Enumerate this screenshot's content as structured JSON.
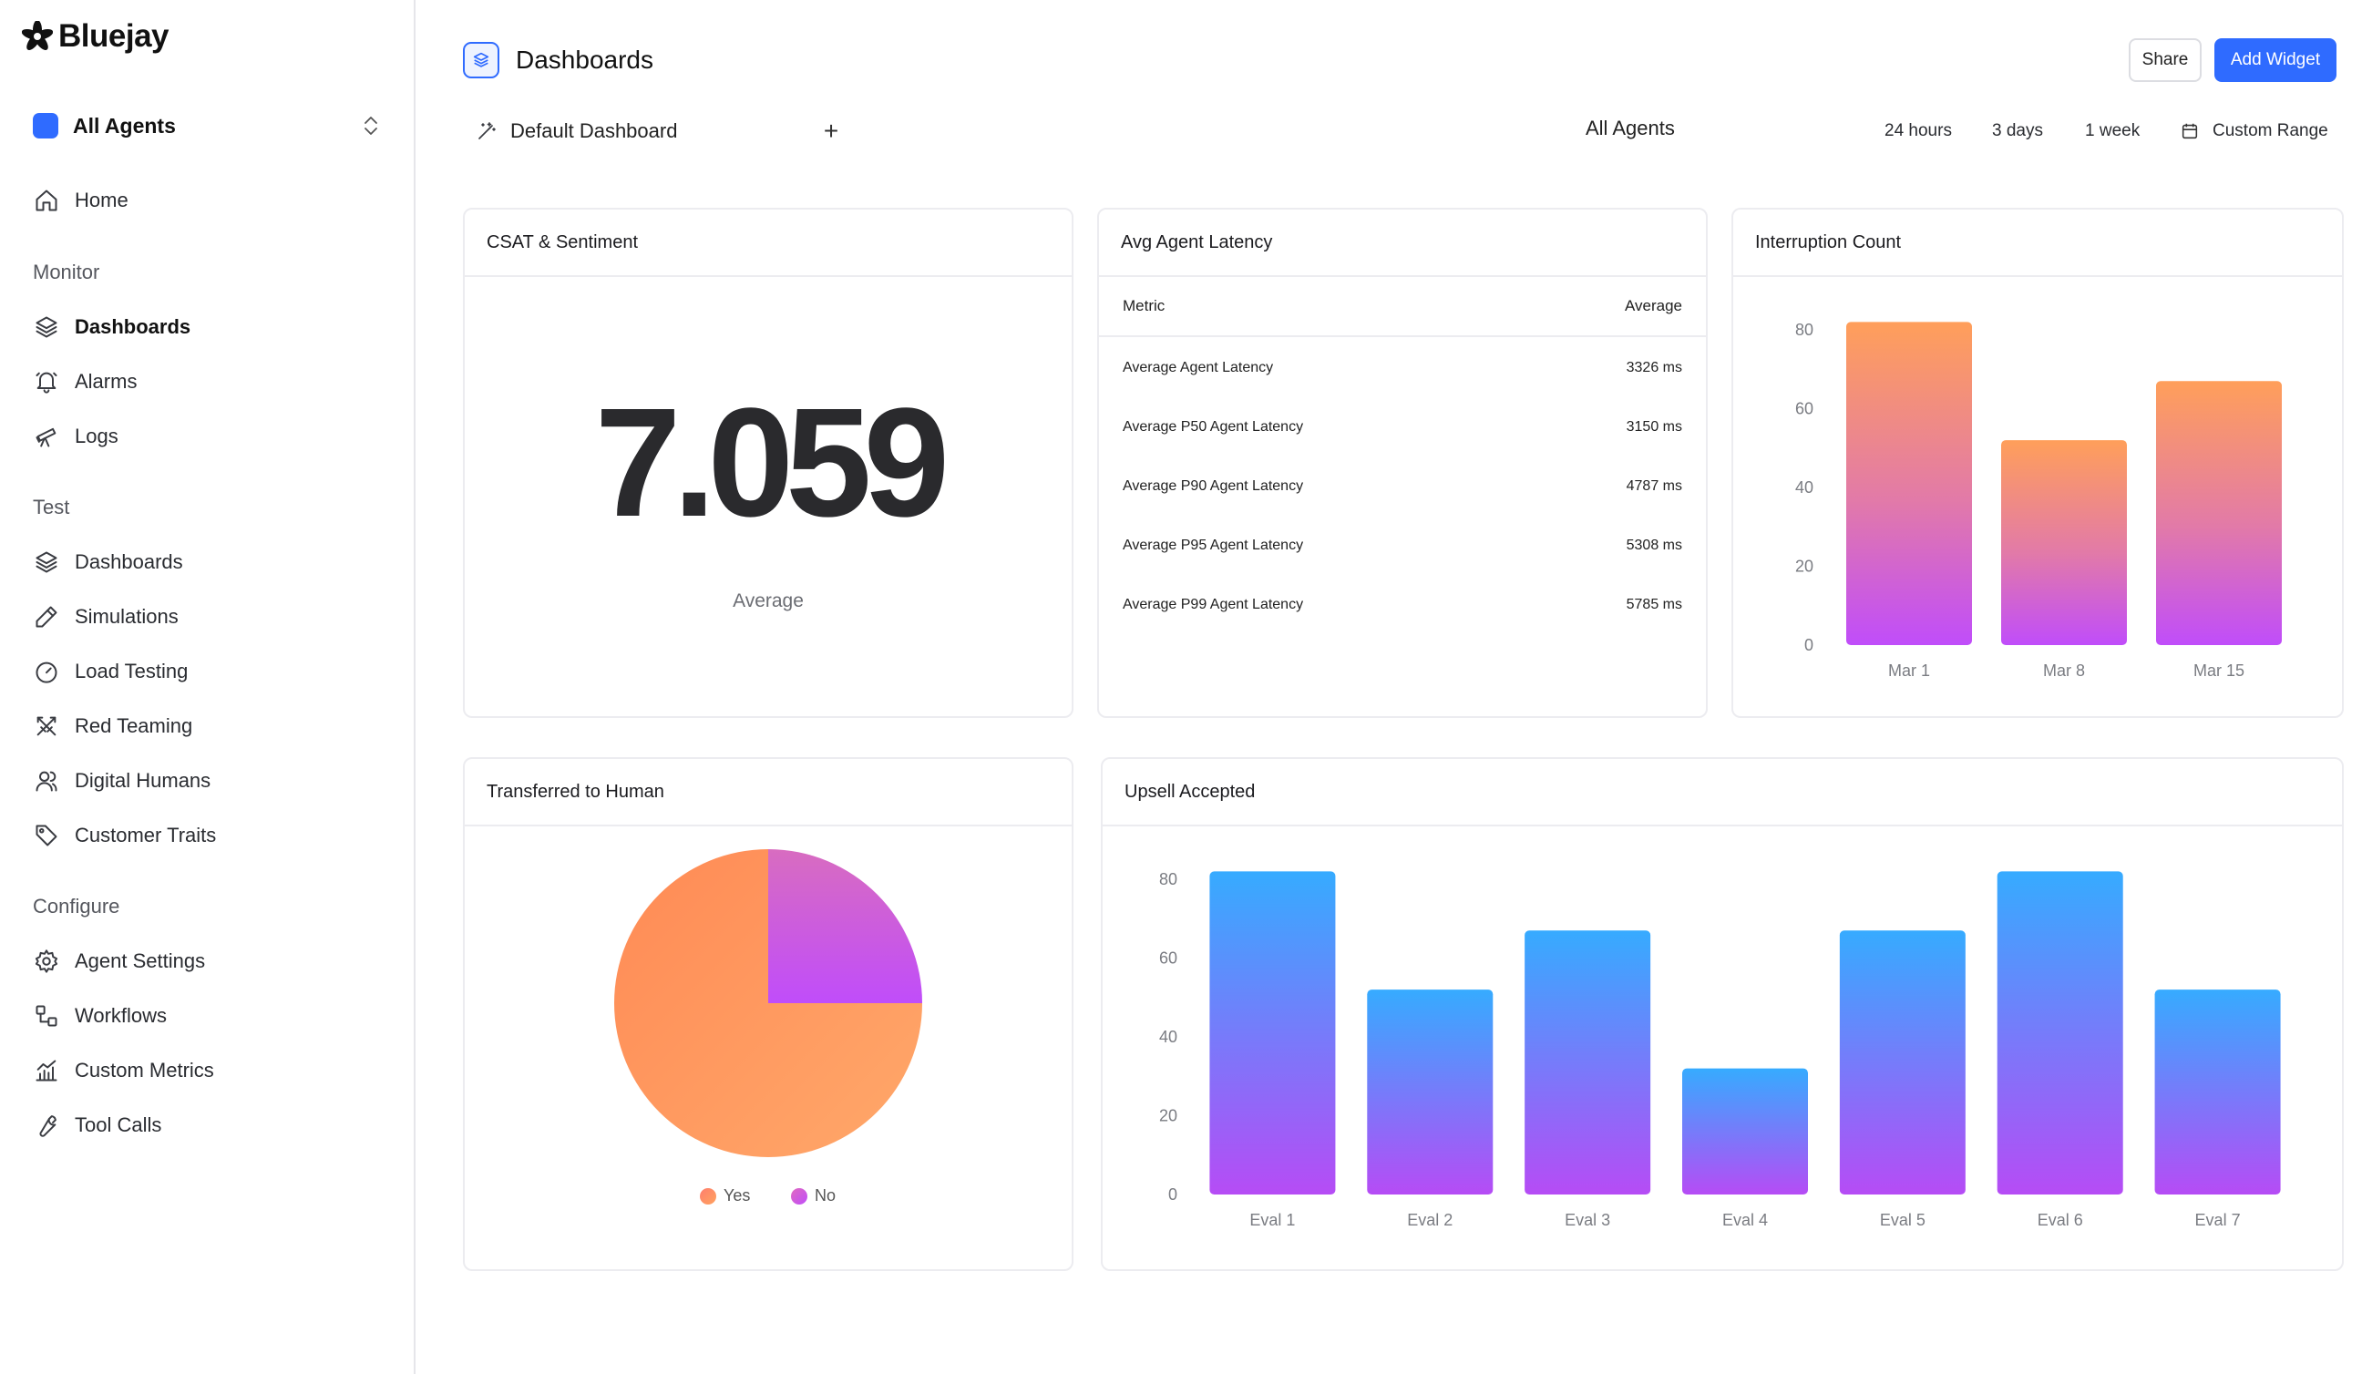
{
  "app": {
    "name": "Bluejay"
  },
  "sidebar": {
    "agent_selector": "All Agents",
    "home": "Home",
    "sections": {
      "monitor": "Monitor",
      "test": "Test",
      "configure": "Configure"
    },
    "monitor_items": [
      "Dashboards",
      "Alarms",
      "Logs"
    ],
    "test_items": [
      "Dashboards",
      "Simulations",
      "Load Testing",
      "Red Teaming",
      "Digital Humans",
      "Customer Traits"
    ],
    "configure_items": [
      "Agent Settings",
      "Workflows",
      "Custom Metrics",
      "Tool Calls"
    ]
  },
  "header": {
    "title": "Dashboards",
    "share": "Share",
    "add_widget": "Add Widget",
    "dashboard_tab": "Default Dashboard",
    "agent_filter": "All Agents",
    "ranges": [
      "24 hours",
      "3 days",
      "1 week"
    ],
    "custom_range": "Custom Range"
  },
  "widgets": {
    "csat": {
      "title": "CSAT & Sentiment",
      "value": "7.059",
      "caption": "Average"
    },
    "latency": {
      "title": "Avg Agent Latency",
      "col_metric": "Metric",
      "col_average": "Average",
      "rows": [
        {
          "metric": "Average Agent Latency",
          "value": "3326 ms"
        },
        {
          "metric": "Average P50 Agent Latency",
          "value": "3150 ms"
        },
        {
          "metric": "Average P90 Agent Latency",
          "value": "4787 ms"
        },
        {
          "metric": "Average P95 Agent Latency",
          "value": "5308 ms"
        },
        {
          "metric": "Average P99 Agent Latency",
          "value": "5785 ms"
        }
      ]
    },
    "interruption": {
      "title": "Interruption Count"
    },
    "transferred": {
      "title": "Transferred to Human",
      "legend_yes": "Yes",
      "legend_no": "No"
    },
    "upsell": {
      "title": "Upsell Accepted"
    }
  },
  "chart_data": [
    {
      "type": "bar",
      "categories": [
        "Mar 1",
        "Mar 8",
        "Mar 15"
      ],
      "values": [
        82,
        52,
        67
      ],
      "ylim": [
        0,
        80
      ],
      "yticks": [
        0,
        20,
        40,
        60,
        80
      ],
      "colors": [
        "#ff9a56",
        "#c04dfa"
      ]
    },
    {
      "type": "pie",
      "categories": [
        "Yes",
        "No"
      ],
      "values": [
        75,
        25
      ],
      "colors": [
        "#ff9a5c",
        "#c04dfa"
      ]
    },
    {
      "type": "bar",
      "categories": [
        "Eval 1",
        "Eval 2",
        "Eval 3",
        "Eval 4",
        "Eval 5",
        "Eval 6",
        "Eval 7"
      ],
      "values": [
        82,
        52,
        67,
        32,
        67,
        82,
        52
      ],
      "ylim": [
        0,
        80
      ],
      "yticks": [
        0,
        20,
        40,
        60,
        80
      ],
      "colors": [
        "#38aaff",
        "#b64cf5"
      ]
    }
  ]
}
